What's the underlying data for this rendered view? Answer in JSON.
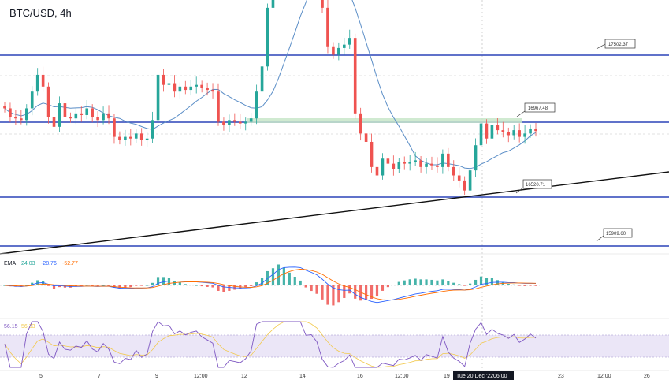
{
  "colors": {
    "level_line": "#2b44b8",
    "trend_line": "#111111",
    "ma_line": "#5b8ec7",
    "bull": "#26a69a",
    "bear": "#ef5350",
    "macd_line": "#2962ff",
    "signal_line": "#ff6d00",
    "rsi_line": "#7e57c2",
    "rsi_ma": "#f2c94c",
    "rsi_band": "#ebe6f7",
    "zone": "#c8e6c9"
  },
  "chart_data": {
    "type": "candlestick",
    "title": "BTC/USD, 4h",
    "x_ticks": [
      "5",
      "7",
      "9",
      "12:00",
      "12",
      "14",
      "16",
      "12:00",
      "19",
      "Tue 20 Dec '22",
      "06:00",
      "23",
      "12:00",
      "26"
    ],
    "price_levels": [
      {
        "label": "17502.37",
        "value": 17502.37
      },
      {
        "label": "16967.48",
        "value": 16967.48
      },
      {
        "label": "16520.71",
        "value": 16520.71
      },
      {
        "label": "15909.60",
        "value": 15909.6
      }
    ],
    "macd": {
      "name": "EMA",
      "values": [
        "24.03",
        "-28.76",
        "-52.77"
      ]
    },
    "rsi": {
      "values": [
        "56.15",
        "56.33"
      ]
    },
    "close_series": [
      17050,
      17000,
      16990,
      16980,
      17050,
      17150,
      17250,
      17180,
      17000,
      16940,
      17080,
      17000,
      16990,
      17020,
      17010,
      17050,
      17000,
      16980,
      17020,
      16990,
      16880,
      16860,
      16880,
      16870,
      16900,
      16860,
      16870,
      16980,
      17250,
      17190,
      17200,
      17150,
      17180,
      17160,
      17180,
      17190,
      17170,
      17160,
      17150,
      16970,
      16950,
      16980,
      16970,
      16960,
      16970,
      16990,
      17150,
      17300,
      17650,
      17780,
      18080,
      18050,
      18040,
      18100,
      18120,
      17950,
      17960,
      17900,
      17650,
      17420,
      17370,
      17410,
      17430,
      17470,
      17020,
      16900,
      16850,
      16700,
      16650,
      16750,
      16720,
      16690,
      16730,
      16720,
      16730,
      16740,
      16700,
      16720,
      16710,
      16700,
      16780,
      16700,
      16650,
      16620,
      16560,
      16680,
      16830,
      16960,
      16870,
      16950,
      16920,
      16910,
      16890,
      16920,
      16880,
      16900,
      16930,
      16915
    ]
  }
}
